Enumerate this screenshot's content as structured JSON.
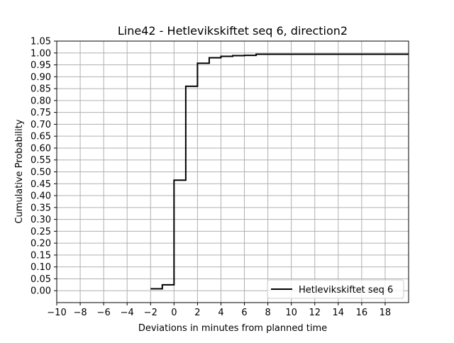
{
  "chart_data": {
    "type": "line",
    "step": "post",
    "title": "Line42 - Hetlevikskiftet seq 6, direction2",
    "xlabel": "Deviations in minutes from planned time",
    "ylabel": "Cumulative Probability",
    "xlim": [
      -10,
      20
    ],
    "ylim": [
      -0.05,
      1.05
    ],
    "xticks": [
      -10,
      -8,
      -6,
      -4,
      -2,
      0,
      2,
      4,
      6,
      8,
      10,
      12,
      14,
      16,
      18
    ],
    "xtick_labels": [
      "−10",
      "−8",
      "−6",
      "−4",
      "−2",
      "0",
      "2",
      "4",
      "6",
      "8",
      "10",
      "12",
      "14",
      "16",
      "18"
    ],
    "yticks": [
      0.0,
      0.05,
      0.1,
      0.15,
      0.2,
      0.25,
      0.3,
      0.35,
      0.4,
      0.45,
      0.5,
      0.55,
      0.6,
      0.65,
      0.7,
      0.75,
      0.8,
      0.85,
      0.9,
      0.95,
      1.0,
      1.05
    ],
    "ytick_labels": [
      "0.00",
      "0.05",
      "0.10",
      "0.15",
      "0.20",
      "0.25",
      "0.30",
      "0.35",
      "0.40",
      "0.45",
      "0.50",
      "0.55",
      "0.60",
      "0.65",
      "0.70",
      "0.75",
      "0.80",
      "0.85",
      "0.90",
      "0.95",
      "1.00",
      "1.05"
    ],
    "grid": true,
    "legend_position": "lower-right",
    "series": [
      {
        "name": "Hetlevikskiftet seq 6",
        "color": "#000000",
        "x": [
          -2,
          -1,
          0,
          1,
          2,
          3,
          4,
          5,
          6,
          7,
          20
        ],
        "y": [
          0.008,
          0.025,
          0.465,
          0.86,
          0.957,
          0.98,
          0.986,
          0.989,
          0.99,
          0.995,
          0.995
        ]
      }
    ]
  },
  "colors": {
    "grid": "#b0b0b0",
    "axes": "#000000",
    "line": "#000000",
    "legend_border": "#cccccc"
  }
}
